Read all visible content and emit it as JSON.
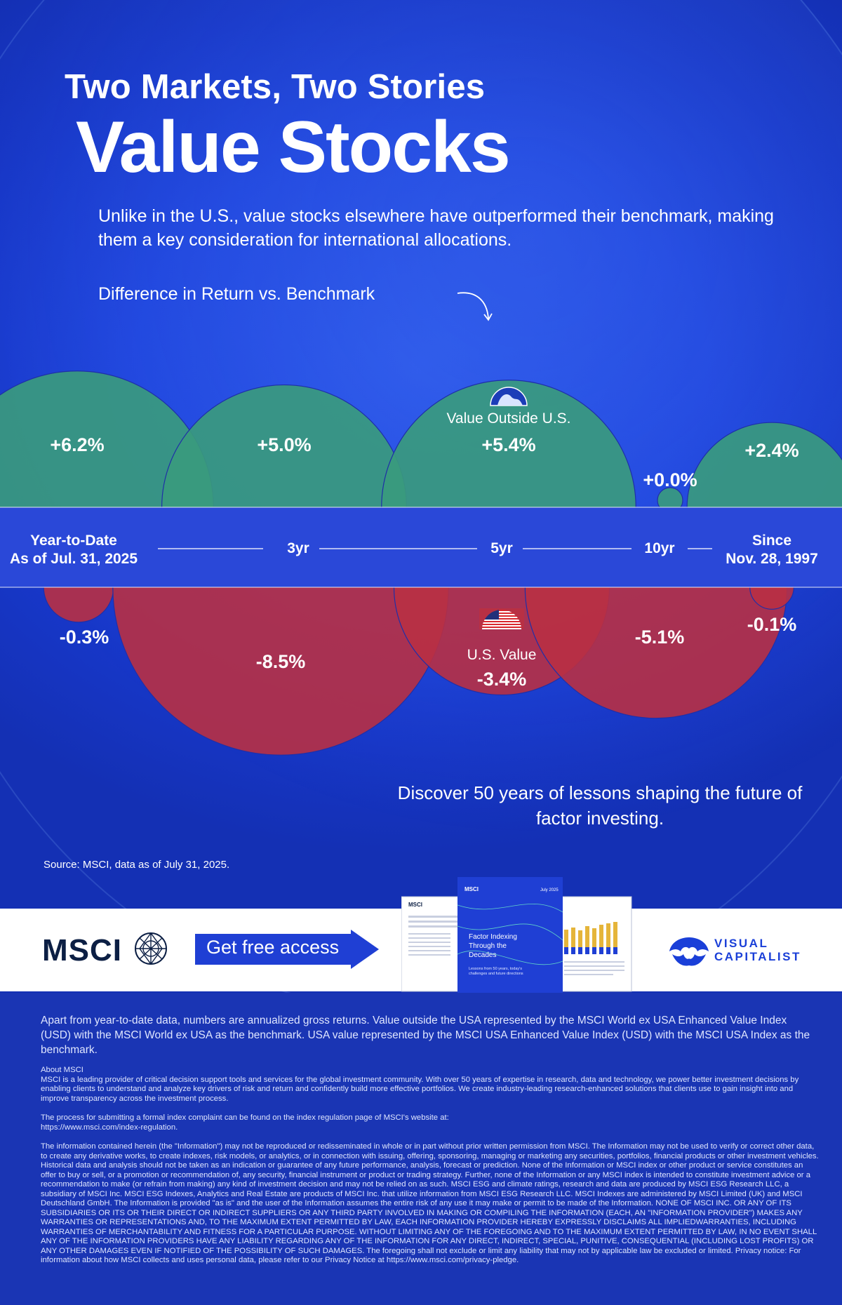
{
  "header": {
    "title_line1": "Two Markets, Two Stories",
    "title_line2": "Value Stocks",
    "intro": "Unlike in the U.S., value stocks elsewhere have outperformed their benchmark, making them a key consideration for international allocations.",
    "chart_label": "Difference in Return vs. Benchmark"
  },
  "chart_data": {
    "type": "bubble",
    "title": "Difference in Return vs. Benchmark",
    "categories": [
      {
        "line1": "Year-to-Date",
        "line2": "As of Jul. 31, 2025"
      },
      {
        "line1": "3yr",
        "line2": ""
      },
      {
        "line1": "5yr",
        "line2": ""
      },
      {
        "line1": "10yr",
        "line2": ""
      },
      {
        "line1": "Since",
        "line2": "Nov. 28, 1997"
      }
    ],
    "series": [
      {
        "name": "Value Outside U.S.",
        "color": "#3a9a7e",
        "values": [
          6.2,
          5.0,
          5.4,
          0.0,
          2.4
        ],
        "labels": [
          "+6.2%",
          "+5.0%",
          "+5.4%",
          "+0.0%",
          "+2.4%"
        ]
      },
      {
        "name": "U.S. Value",
        "color": "#b83044",
        "values": [
          -0.3,
          -8.5,
          -3.4,
          -5.1,
          -0.1
        ],
        "labels": [
          "-0.3%",
          "-8.5%",
          "-3.4%",
          "-5.1%",
          "-0.1%"
        ]
      }
    ],
    "units": "%"
  },
  "cta": {
    "discover": "Discover 50 years of lessons shaping the future of factor investing.",
    "source": "Source: MSCI, data as of July 31, 2025.",
    "msci_logo": "MSCI",
    "button_label": "Get free access",
    "report_title": "Factor Indexing Through the Decades",
    "report_subtitle": "Lessons from 50 years, today's challenges and future directions",
    "report_brand": "MSCI",
    "report_date": "July 2025",
    "vc_logo_line1": "VISUAL",
    "vc_logo_line2": "CAPITALIST"
  },
  "footer": {
    "notes": "Apart from year-to-date data, numbers are annualized gross returns. Value outside the USA represented by the MSCI World ex USA Enhanced Value Index (USD) with the MSCI World ex USA as the benchmark. USA value represented by the MSCI USA Enhanced Value Index (USD) with the MSCI USA Index as the benchmark.",
    "about_title": "About MSCI",
    "about_text": "MSCI is a leading provider of critical decision support tools and services for the global investment community. With over 50 years of expertise in research, data and technology, we power better investment decisions by enabling clients to understand and analyze key drivers of risk and return and confidently build more effective portfolios. We create industry-leading research-enhanced solutions that clients use to gain insight into and improve transparency across the investment process.",
    "complaint_text": "The process for submitting a formal index complaint can be found on the index regulation page of MSCI's website at:",
    "complaint_url": "https://www.msci.com/index-regulation.",
    "disclaimer": "The information contained herein (the \"Information\") may not be reproduced or redisseminated in whole or in part without prior written permission from MSCI. The Information may not be used to verify or correct other data, to create any derivative works, to create indexes, risk models, or analytics, or in connection with issuing, offering, sponsoring, managing or marketing any securities, portfolios, financial products or other investment vehicles. Historical data and analysis should not be taken as an indication or guarantee of any future performance, analysis, forecast or prediction. None of the Information or MSCI index or other product or service constitutes an offer to buy or sell, or a promotion or recommendation of, any security, financial instrument or product or trading strategy. Further, none of the Information or any MSCI index is intended to constitute investment advice or a recommendation to make (or refrain from making) any kind of investment decision and may not be relied on as such. MSCI ESG and climate ratings, research and data are produced by MSCI ESG Research LLC, a subsidiary of MSCI Inc. MSCI ESG Indexes, Analytics and Real Estate are products of MSCI Inc. that utilize information from MSCI ESG Research LLC. MSCI Indexes are administered by MSCI Limited (UK) and MSCI Deutschland GmbH. The Information is provided \"as is\" and the user of the Information assumes the entire risk of any use it may make or permit to be made of the Information. NONE OF MSCI INC. OR ANY OF ITS SUBSIDIARIES OR ITS OR THEIR DIRECT OR INDIRECT SUPPLIERS OR ANY THIRD PARTY INVOLVED IN MAKING OR COMPILING THE INFORMATION (EACH, AN \"INFORMATION PROVIDER\") MAKES ANY WARRANTIES OR REPRESENTATIONS AND, TO THE MAXIMUM EXTENT PERMITTED BY LAW, EACH INFORMATION PROVIDER HEREBY EXPRESSLY DISCLAIMS ALL IMPLIEDWARRANTIES, INCLUDING WARRANTIES OF MERCHANTABILITY AND FITNESS FOR A PARTICULAR PURPOSE. WITHOUT LIMITING ANY OF THE FOREGOING AND TO THE MAXIMUM EXTENT PERMITTED BY LAW, IN NO EVENT SHALL ANY OF THE INFORMATION PROVIDERS HAVE ANY LIABILITY REGARDING ANY OF THE INFORMATION FOR ANY DIRECT, INDIRECT, SPECIAL, PUNITIVE, CONSEQUENTIAL (INCLUDING LOST PROFITS) OR ANY OTHER DAMAGES EVEN IF NOTIFIED OF THE POSSIBILITY OF SUCH DAMAGES. The foregoing shall not exclude or limit any liability that may not by applicable law be excluded or limited. Privacy notice: For information about how MSCI collects and uses personal data, please refer to our Privacy Notice at https://www.msci.com/privacy-pledge."
  }
}
